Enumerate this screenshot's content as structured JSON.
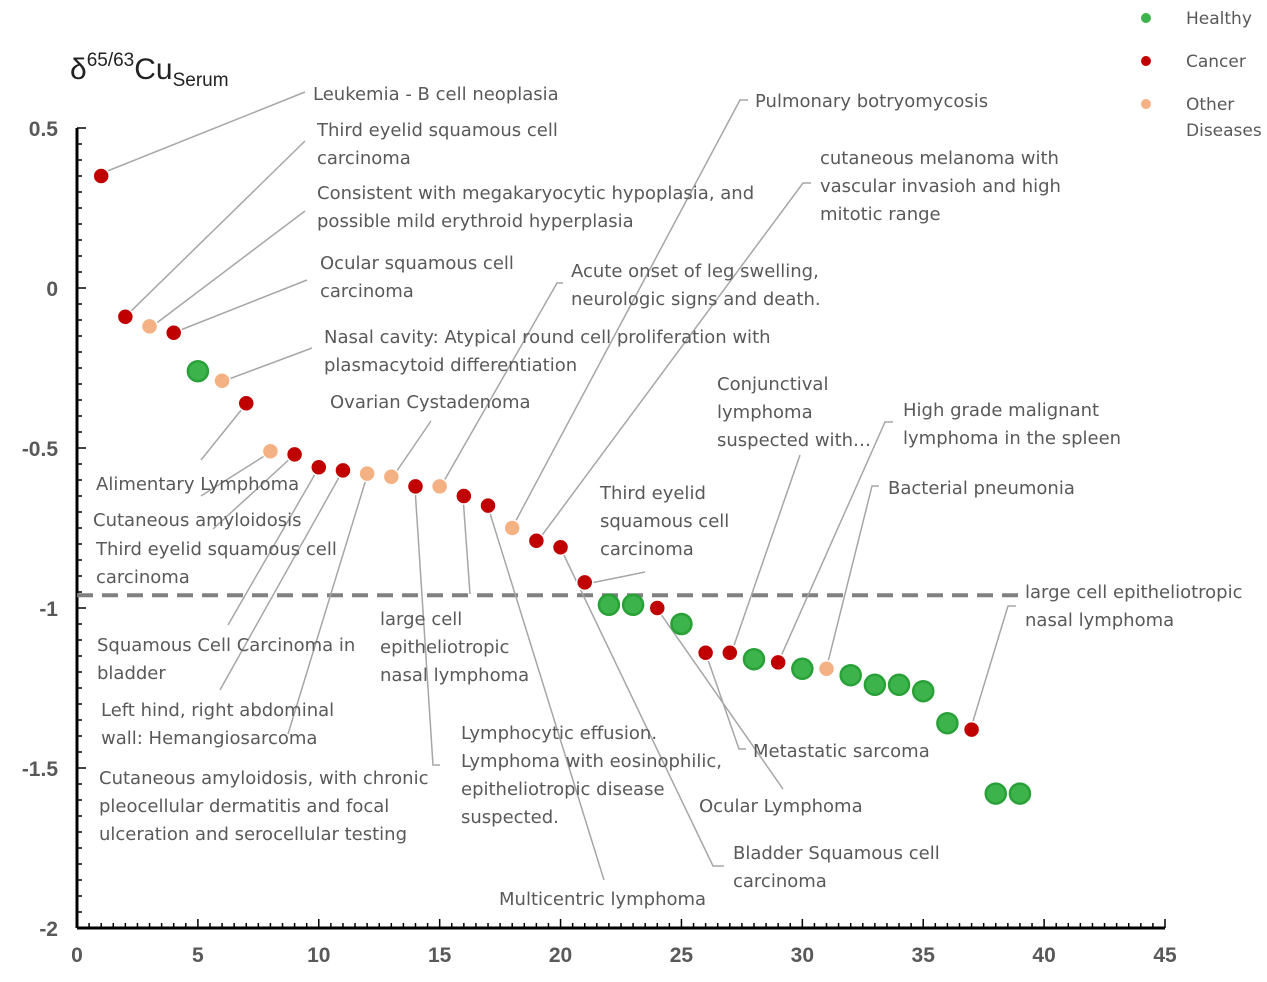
{
  "chart_data": {
    "type": "scatter",
    "ylabel": {
      "base": "δ",
      "sup": "65/63",
      "main": "Cu",
      "sub": "Serum"
    },
    "xlim": [
      0,
      45
    ],
    "ylim": [
      -2,
      0.5
    ],
    "x_ticks": [
      0,
      5,
      10,
      15,
      20,
      25,
      30,
      35,
      40,
      45
    ],
    "y_ticks": [
      0.5,
      0,
      -0.5,
      -1,
      -1.5,
      -2
    ],
    "y_tick_labels": [
      "0.5",
      "0",
      "-0.5",
      "-1",
      "-1.5",
      "-2"
    ],
    "reference_line": {
      "y": -0.96,
      "style": "dashed"
    },
    "grid": false,
    "legend_position": "top-right",
    "series": [
      {
        "name": "Healthy",
        "key": "healthy",
        "color": "#3cb44b",
        "points": [
          [
            5,
            -0.26
          ],
          [
            22,
            -0.99
          ],
          [
            23,
            -0.99
          ],
          [
            25,
            -1.05
          ],
          [
            28,
            -1.16
          ],
          [
            30,
            -1.19
          ],
          [
            32,
            -1.21
          ],
          [
            33,
            -1.24
          ],
          [
            34,
            -1.24
          ],
          [
            35,
            -1.26
          ],
          [
            36,
            -1.36
          ],
          [
            38,
            -1.58
          ],
          [
            39,
            -1.58
          ]
        ]
      },
      {
        "name": "Cancer",
        "key": "cancer",
        "color": "#c00000",
        "points": [
          [
            1,
            0.35
          ],
          [
            2,
            -0.09
          ],
          [
            4,
            -0.14
          ],
          [
            7,
            -0.36
          ],
          [
            9,
            -0.52
          ],
          [
            10,
            -0.56
          ],
          [
            11,
            -0.57
          ],
          [
            14,
            -0.62
          ],
          [
            16,
            -0.65
          ],
          [
            17,
            -0.68
          ],
          [
            19,
            -0.79
          ],
          [
            20,
            -0.81
          ],
          [
            21,
            -0.92
          ],
          [
            24,
            -1.0
          ],
          [
            26,
            -1.14
          ],
          [
            27,
            -1.14
          ],
          [
            29,
            -1.17
          ],
          [
            37,
            -1.38
          ]
        ]
      },
      {
        "name": "Other\nDiseases",
        "key": "other",
        "color": "#f4b183",
        "points": [
          [
            3,
            -0.12
          ],
          [
            6,
            -0.29
          ],
          [
            8,
            -0.51
          ],
          [
            12,
            -0.58
          ],
          [
            13,
            -0.59
          ],
          [
            15,
            -0.62
          ],
          [
            18,
            -0.75
          ],
          [
            31,
            -1.19
          ]
        ]
      }
    ],
    "annotations": [
      {
        "lines": [
          "Leukemia - B cell neoplasia"
        ],
        "text_px": [
          313,
          100
        ],
        "path": [
          [
            305,
            92
          ],
          [
            100,
            174
          ]
        ]
      },
      {
        "lines": [
          "Third eyelid squamous cell",
          "carcinoma"
        ],
        "text_px": [
          317,
          136
        ],
        "path": [
          [
            305,
            141
          ],
          [
            124,
            318
          ]
        ]
      },
      {
        "lines": [
          "Consistent with megakaryocytic hypoplasia, and",
          "possible mild erythroid hyperplasia"
        ],
        "text_px": [
          317,
          199
        ],
        "path": [
          [
            305,
            211
          ],
          [
            150,
            328
          ]
        ]
      },
      {
        "lines": [
          "Ocular squamous cell",
          "carcinoma"
        ],
        "text_px": [
          320,
          269
        ],
        "path": [
          [
            307,
            280
          ],
          [
            173,
            333
          ]
        ]
      },
      {
        "lines": [
          "Nasal cavity: Atypical round cell proliferation with",
          "plasmacytoid differentiation"
        ],
        "text_px": [
          324,
          343
        ],
        "path": [
          [
            312,
            348
          ],
          [
            221,
            382
          ]
        ]
      },
      {
        "lines": [
          "Pulmonary botryomycosis"
        ],
        "text_px": [
          755,
          107
        ],
        "path": [
          [
            748,
            100
          ],
          [
            740,
            100
          ],
          [
            512,
            528
          ]
        ]
      },
      {
        "lines": [
          "cutaneous melanoma with",
          "vascular invasioh and high",
          "mitotic range"
        ],
        "text_px": [
          820,
          164
        ],
        "path": [
          [
            811,
            183
          ],
          [
            803,
            183
          ],
          [
            537,
            542
          ]
        ]
      },
      {
        "lines": [
          "Acute onset of leg swelling,",
          "neurologic signs and death."
        ],
        "text_px": [
          571,
          277
        ],
        "path": [
          [
            563,
            283
          ],
          [
            557,
            283
          ],
          [
            440,
            488
          ]
        ]
      },
      {
        "lines": [
          "Ovarian Cystadenoma"
        ],
        "text_px": [
          330,
          408
        ],
        "path": [
          [
            431,
            421
          ],
          [
            392,
            478
          ]
        ]
      },
      {
        "lines": [
          "Conjunctival",
          "lymphoma",
          "suspected with…"
        ],
        "text_px": [
          717,
          390
        ],
        "path": [
          [
            800,
            455
          ],
          [
            731,
            654
          ]
        ]
      },
      {
        "lines": [
          "High grade malignant",
          "lymphoma in the spleen"
        ],
        "text_px": [
          903,
          416
        ],
        "path": [
          [
            893,
            422
          ],
          [
            885,
            422
          ],
          [
            778,
            663
          ]
        ]
      },
      {
        "lines": [
          "Bacterial pneumonia"
        ],
        "text_px": [
          888,
          494
        ],
        "path": [
          [
            879,
            486
          ],
          [
            872,
            486
          ],
          [
            826,
            670
          ]
        ]
      },
      {
        "lines": [
          "Third eyelid",
          "squamous cell",
          "carcinoma"
        ],
        "text_px": [
          600,
          499
        ],
        "path": [
          [
            645,
            572
          ],
          [
            586,
            584
          ]
        ]
      },
      {
        "lines": [
          "Alimentary Lymphoma"
        ],
        "text_px": [
          96,
          490
        ],
        "path": [
          [
            201,
            460
          ],
          [
            246,
            404
          ]
        ]
      },
      {
        "lines": [
          "Cutaneous amyloidosis"
        ],
        "text_px": [
          93,
          526
        ],
        "path": [
          [
            201,
            496
          ],
          [
            269,
            453
          ]
        ]
      },
      {
        "lines": [
          "Third eyelid squamous cell",
          "carcinoma"
        ],
        "text_px": [
          96,
          555
        ],
        "path": [
          [
            213,
            529
          ],
          [
            293,
            456
          ]
        ]
      },
      {
        "lines": [
          "Squamous Cell Carcinoma in",
          "bladder"
        ],
        "text_px": [
          97,
          651
        ],
        "path": [
          [
            228,
            625
          ],
          [
            318,
            469
          ]
        ]
      },
      {
        "lines": [
          "Left hind, right abdominal",
          "wall: Hemangiosarcoma"
        ],
        "text_px": [
          101,
          716
        ],
        "path": [
          [
            220,
            690
          ],
          [
            342,
            472
          ]
        ]
      },
      {
        "lines": [
          "Cutaneous amyloidosis, with chronic",
          "pleocellular dermatitis and focal",
          "ulceration and serocellular testing"
        ],
        "text_px": [
          99,
          784
        ],
        "path": [
          [
            288,
            734
          ],
          [
            367,
            476
          ]
        ]
      },
      {
        "lines": [
          "large cell",
          "epitheliotropic",
          "nasal lymphoma"
        ],
        "text_px": [
          380,
          625
        ],
        "path": [
          [
            470,
            594
          ],
          [
            463,
            497
          ]
        ]
      },
      {
        "lines": [
          "Lymphocytic effusion.",
          "Lymphoma with eosinophilic,",
          "epitheliotropic disease",
          "suspected."
        ],
        "text_px": [
          461,
          739
        ],
        "path": [
          [
            440,
            765
          ],
          [
            433,
            765
          ],
          [
            415,
            488
          ]
        ]
      },
      {
        "lines": [
          "Multicentric lymphoma"
        ],
        "text_px": [
          499,
          905
        ],
        "path": [
          [
            604,
            880
          ],
          [
            488,
            507
          ]
        ]
      },
      {
        "lines": [
          "Metastatic sarcoma"
        ],
        "text_px": [
          753,
          757
        ],
        "path": [
          [
            746,
            749
          ],
          [
            739,
            749
          ],
          [
            706,
            654
          ]
        ]
      },
      {
        "lines": [
          "Ocular Lymphoma"
        ],
        "text_px": [
          699,
          812
        ],
        "path": [
          [
            783,
            789
          ],
          [
            658,
            610
          ]
        ]
      },
      {
        "lines": [
          "Bladder Squamous cell",
          "carcinoma"
        ],
        "text_px": [
          733,
          859
        ],
        "path": [
          [
            724,
            866
          ],
          [
            713,
            866
          ],
          [
            561,
            549
          ]
        ]
      },
      {
        "lines": [
          "large cell epitheliotropic",
          "nasal lymphoma"
        ],
        "text_px": [
          1025,
          598
        ],
        "path": [
          [
            1016,
            606
          ],
          [
            1008,
            606
          ],
          [
            970,
            731
          ]
        ]
      }
    ]
  }
}
